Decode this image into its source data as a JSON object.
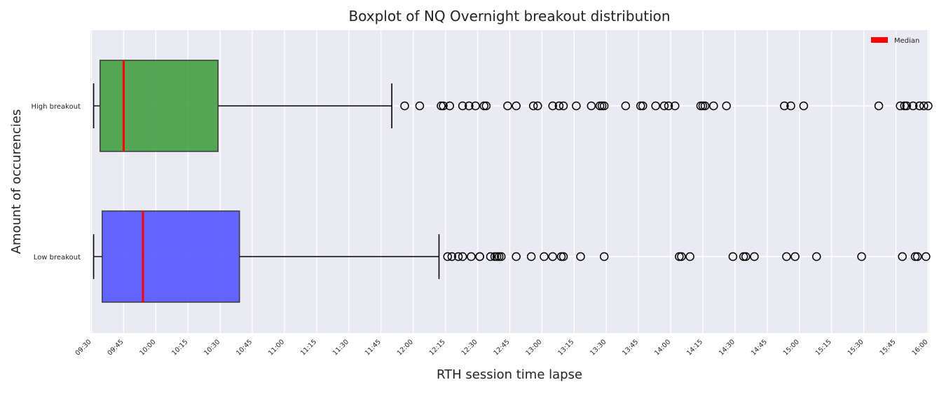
{
  "chart_data": {
    "type": "boxplot",
    "orientation": "horizontal",
    "title": "Boxplot of NQ Overnight breakout distribution",
    "xlabel": "RTH session time lapse",
    "ylabel": "Amount of occurencies",
    "x_tick_labels": [
      "09:30",
      "09:45",
      "10:00",
      "10:15",
      "10:30",
      "10:45",
      "11:00",
      "11:15",
      "11:30",
      "11:45",
      "12:00",
      "12:15",
      "12:30",
      "12:45",
      "13:00",
      "13:15",
      "13:30",
      "13:45",
      "14:00",
      "14:15",
      "14:30",
      "14:45",
      "15:00",
      "15:15",
      "15:30",
      "15:45",
      "16:00"
    ],
    "x_tick_minutes": [
      0,
      15,
      30,
      45,
      60,
      75,
      90,
      105,
      120,
      135,
      150,
      165,
      180,
      195,
      210,
      225,
      240,
      255,
      270,
      285,
      300,
      315,
      330,
      345,
      360,
      375,
      390
    ],
    "xlim_minutes": [
      -0.5,
      390.5
    ],
    "grid": true,
    "legend": {
      "position": "top-right",
      "entries": [
        {
          "label": "Median",
          "color": "#ff0000"
        }
      ]
    },
    "series": [
      {
        "name": "High breakout",
        "color": "#3a9a3a",
        "box": {
          "whisker_low": 1,
          "q1": 4,
          "median": 15,
          "q3": 59,
          "whisker_high": 140
        },
        "outliers": [
          146,
          153,
          163,
          164,
          167,
          173,
          176,
          179,
          183,
          184,
          194,
          198,
          206,
          208,
          215,
          218,
          220,
          226,
          233,
          237,
          238,
          239,
          249,
          256,
          257,
          263,
          267,
          269,
          272,
          284,
          285,
          286,
          290,
          296,
          323,
          326,
          332,
          367,
          377,
          379,
          380,
          383,
          386,
          388,
          390
        ]
      },
      {
        "name": "Low breakout",
        "color": "#4b4bff",
        "box": {
          "whisker_low": 1,
          "q1": 5,
          "median": 24,
          "q3": 69,
          "whisker_high": 162
        },
        "outliers": [
          166,
          168,
          171,
          173,
          177,
          181,
          181,
          186,
          188,
          189,
          190,
          191,
          198,
          205,
          211,
          215,
          219,
          220,
          228,
          239,
          274,
          275,
          279,
          299,
          304,
          305,
          309,
          324,
          328,
          338,
          359,
          378,
          384,
          385,
          389
        ]
      }
    ]
  }
}
